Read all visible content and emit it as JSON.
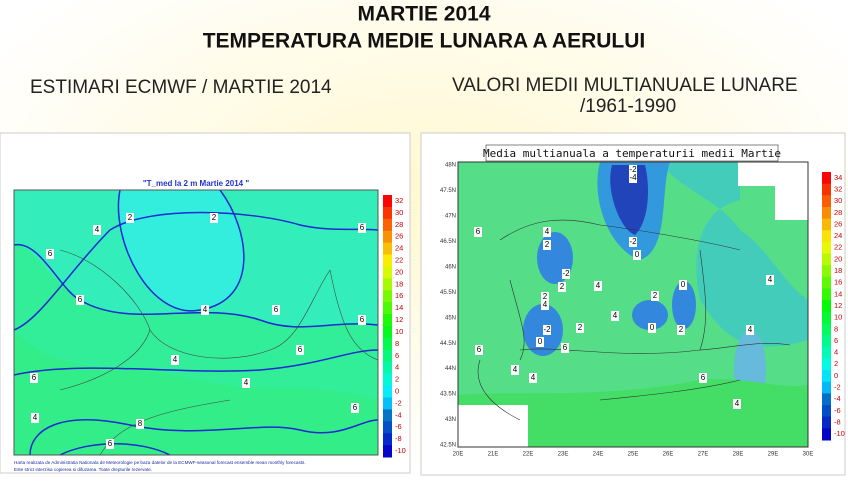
{
  "header": {
    "title": "MARTIE 2014",
    "subtitle": "TEMPERATURA MEDIE LUNARA A AERULUI",
    "left_caption": "ESTIMARI ECMWF / MARTIE 2014",
    "right_caption_line1": "VALORI MEDII MULTIANUALE LUNARE",
    "right_caption_line2": "/1961-1990"
  },
  "left_map": {
    "title": "\"T_med la 2 m Martie 2014 \"",
    "colorbar_labels": [
      "32",
      "30",
      "28",
      "26",
      "24",
      "22",
      "20",
      "18",
      "16",
      "14",
      "12",
      "10",
      "8",
      "6",
      "4",
      "2",
      "0",
      "-2",
      "-4",
      "-6",
      "-8",
      "-10"
    ],
    "contour_labels": [
      "2",
      "2",
      "4",
      "6",
      "4",
      "6",
      "4",
      "6",
      "6",
      "4",
      "6",
      "4",
      "6",
      "8",
      "6",
      "6",
      "6"
    ],
    "footnote_line1": "Harta realizata de Administratia Nationala de Meteorologie pe baza datelor de la ECMWF-seasonal forecast ensemble mean monthly forecasts.",
    "footnote_line2": "Este strict interzisa copierea si difuzarea. Toate drepturile rezervate."
  },
  "right_map": {
    "title": "Media multianuala a temperaturii medii Martie",
    "lat_labels": [
      "48N",
      "47.5N",
      "47N",
      "46.5N",
      "46N",
      "45.5N",
      "45N",
      "44.5N",
      "44N",
      "43.5N",
      "43N",
      "42.5N"
    ],
    "lon_labels": [
      "20E",
      "21E",
      "22E",
      "23E",
      "24E",
      "25E",
      "26E",
      "27E",
      "28E",
      "29E",
      "30E"
    ],
    "colorbar_labels": [
      "34",
      "32",
      "30",
      "28",
      "26",
      "24",
      "22",
      "20",
      "18",
      "16",
      "14",
      "12",
      "10",
      "8",
      "6",
      "4",
      "2",
      "0",
      "-2",
      "-4",
      "-6",
      "-8",
      "-10"
    ],
    "contour_labels": [
      "-2",
      "-4",
      "-2",
      "0",
      "4",
      "2",
      "-2",
      "2",
      "4",
      "2",
      "4",
      "0",
      "-2",
      "2",
      "0",
      "4",
      "2",
      "0",
      "2",
      "6",
      "6",
      "4",
      "4",
      "6",
      "4",
      "6",
      "4",
      "4"
    ]
  }
}
